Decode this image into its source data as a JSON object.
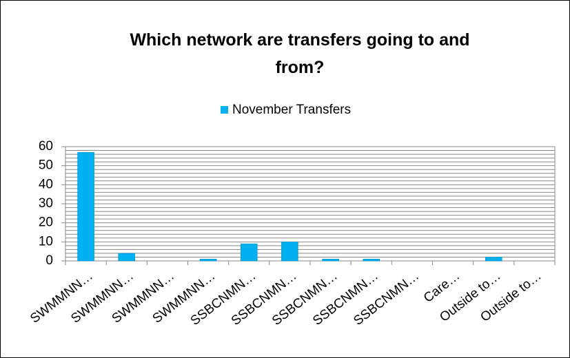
{
  "chart_data": {
    "type": "bar",
    "title": "Which network are transfers going to and from?",
    "categories": [
      "SWMMNN…",
      "SWMMNN…",
      "SWMMNN…",
      "SWMMNN…",
      "SSBCNMN…",
      "SSBCNMN…",
      "SSBCNMN…",
      "SSBCNMN…",
      "SSBCNMN…",
      "Care…",
      "Outside to…",
      "Outside to…"
    ],
    "series": [
      {
        "name": "November Transfers",
        "color": "#00b0f0",
        "values": [
          57,
          4,
          0,
          1,
          9,
          10,
          1,
          1,
          0,
          0,
          2,
          0
        ]
      }
    ],
    "ylim": [
      0,
      60
    ],
    "yticks": [
      0,
      10,
      20,
      30,
      40,
      50,
      60
    ],
    "minor_yticks": [
      2,
      4,
      6,
      8,
      12,
      14,
      16,
      18,
      22,
      24,
      26,
      28,
      32,
      34,
      36,
      38,
      42,
      44,
      46,
      48,
      52,
      54,
      56,
      58
    ],
    "grid": true,
    "legend": "top"
  }
}
